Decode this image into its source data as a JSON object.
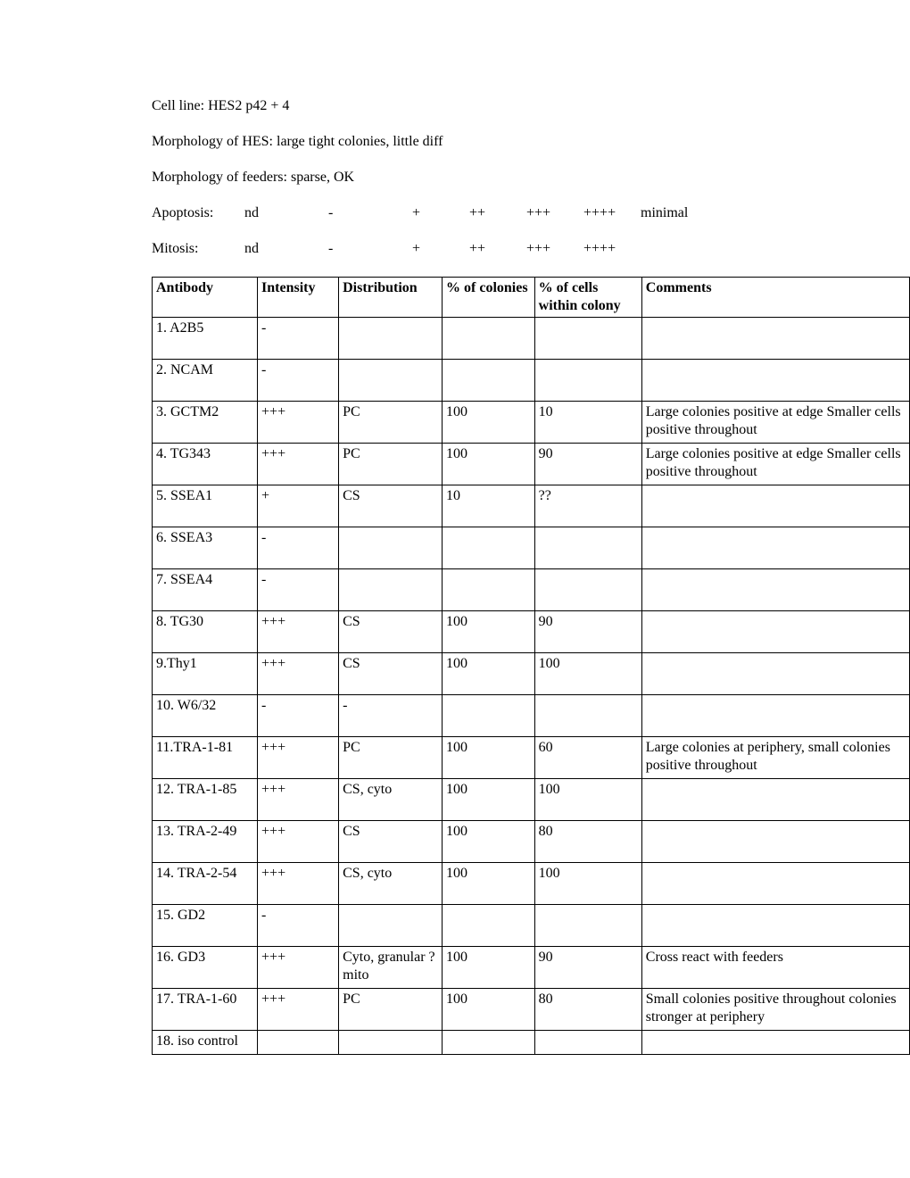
{
  "header": {
    "cell_line": "Cell line: HES2 p42 + 4",
    "morph_hes": "Morphology of HES: large tight colonies, little diff",
    "morph_feeders": "Morphology  of feeders: sparse, OK",
    "apoptosis": {
      "label": "Apoptosis:",
      "v1": "nd",
      "v2": "-",
      "v3": "+",
      "v4": "++",
      "v5": "+++",
      "v6": "++++",
      "extra": "minimal"
    },
    "mitosis": {
      "label": "Mitosis:",
      "v1": "nd",
      "v2": "-",
      "v3": "+",
      "v4": "++",
      "v5": "+++",
      "v6": "++++",
      "extra": ""
    }
  },
  "table": {
    "columns": {
      "antibody": "Antibody",
      "intensity": "Intensity",
      "distribution": "Distribution",
      "colonies": "% of colonies",
      "cells": "% of cells within colony",
      "comments": "Comments"
    },
    "rows": [
      {
        "antibody": "1. A2B5",
        "intensity": "-",
        "distribution": "",
        "colonies": "",
        "cells": "",
        "comments": "",
        "tall": true
      },
      {
        "antibody": "2. NCAM",
        "intensity": "-",
        "distribution": "",
        "colonies": "",
        "cells": "",
        "comments": "",
        "tall": true
      },
      {
        "antibody": "3. GCTM2",
        "intensity": "+++",
        "distribution": "PC",
        "colonies": "100",
        "cells": "10",
        "comments": "Large colonies positive at edge Smaller cells positive throughout",
        "tall": true
      },
      {
        "antibody": "4. TG343",
        "intensity": "+++",
        "distribution": "PC",
        "colonies": "100",
        "cells": "90",
        "comments": "Large colonies positive at edge Smaller cells positive throughout",
        "tall": true
      },
      {
        "antibody": "5. SSEA1",
        "intensity": "+",
        "distribution": "CS",
        "colonies": "10",
        "cells": "??",
        "comments": "",
        "tall": true
      },
      {
        "antibody": "6. SSEA3",
        "intensity": "-",
        "distribution": "",
        "colonies": "",
        "cells": "",
        "comments": "",
        "tall": true
      },
      {
        "antibody": "7. SSEA4",
        "intensity": "-",
        "distribution": "",
        "colonies": "",
        "cells": "",
        "comments": "",
        "tall": true
      },
      {
        "antibody": "8. TG30",
        "intensity": "+++",
        "distribution": "CS",
        "colonies": "100",
        "cells": "90",
        "comments": "",
        "tall": true
      },
      {
        "antibody": "9.Thy1",
        "intensity": "+++",
        "distribution": "CS",
        "colonies": "100",
        "cells": "100",
        "comments": "",
        "tall": true
      },
      {
        "antibody": "10. W6/32",
        "intensity": "-",
        "distribution": "-",
        "colonies": "",
        "cells": "",
        "comments": "",
        "tall": true
      },
      {
        "antibody": "11.TRA-1-81",
        "intensity": "+++",
        "distribution": "PC",
        "colonies": "100",
        "cells": "60",
        "comments": "Large colonies at periphery, small colonies positive throughout",
        "tall": true
      },
      {
        "antibody": "12. TRA-1-85",
        "intensity": "+++",
        "distribution": "CS, cyto",
        "colonies": "100",
        "cells": "100",
        "comments": "",
        "tall": true
      },
      {
        "antibody": "13. TRA-2-49",
        "intensity": "+++",
        "distribution": "CS",
        "colonies": "100",
        "cells": "80",
        "comments": "",
        "tall": true
      },
      {
        "antibody": "14. TRA-2-54",
        "intensity": "+++",
        "distribution": "CS, cyto",
        "colonies": "100",
        "cells": "100",
        "comments": "",
        "tall": true
      },
      {
        "antibody": "15. GD2",
        "intensity": "-",
        "distribution": "",
        "colonies": "",
        "cells": "",
        "comments": "",
        "tall": true
      },
      {
        "antibody": "16. GD3",
        "intensity": "+++",
        "distribution": "Cyto, granular ? mito",
        "colonies": "100",
        "cells": "90",
        "comments": "Cross react with feeders",
        "tall": true
      },
      {
        "antibody": "17. TRA-1-60",
        "intensity": "+++",
        "distribution": "PC",
        "colonies": "100",
        "cells": "80",
        "comments": "Small colonies positive throughout colonies stronger at periphery",
        "tall": true
      },
      {
        "antibody": "18. iso control",
        "intensity": "",
        "distribution": "",
        "colonies": "",
        "cells": "",
        "comments": "",
        "tall": false
      }
    ]
  }
}
